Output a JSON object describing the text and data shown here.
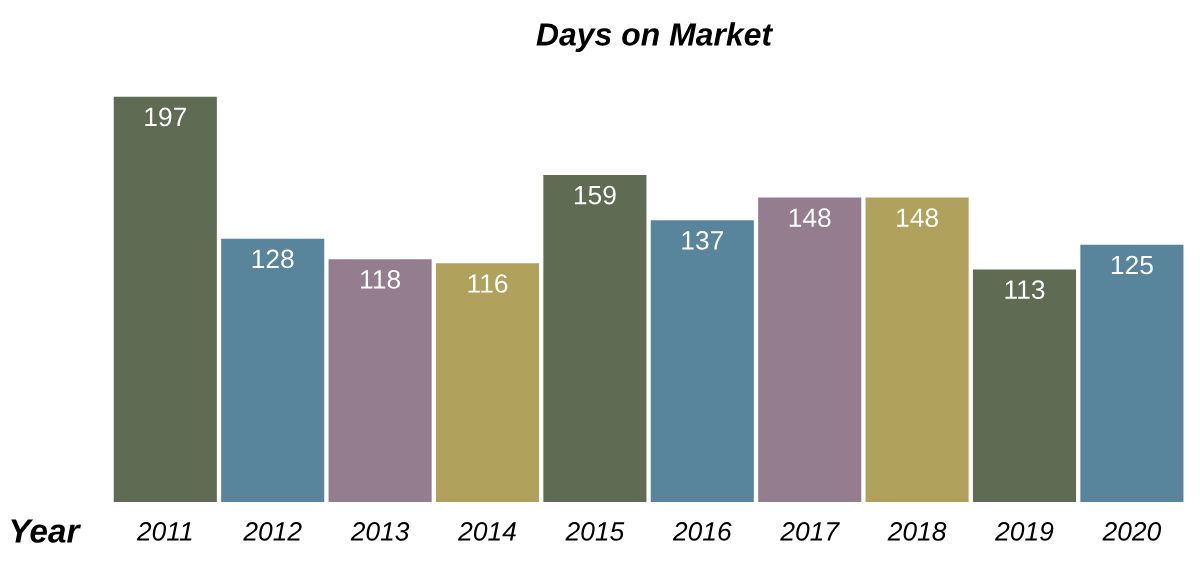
{
  "chart_data": {
    "type": "bar",
    "title": "Days on Market",
    "xlabel": "Year",
    "categories": [
      "2011",
      "2012",
      "2013",
      "2014",
      "2015",
      "2016",
      "2017",
      "2018",
      "2019",
      "2020"
    ],
    "values": [
      197,
      128,
      118,
      116,
      159,
      137,
      148,
      148,
      113,
      125
    ],
    "colors": [
      "#5f6b52",
      "#58849c",
      "#937d8f",
      "#b0a15c",
      "#5f6b52",
      "#58849c",
      "#937d8f",
      "#b0a15c",
      "#5f6b52",
      "#58849c"
    ],
    "data_labels": true,
    "grid": false,
    "legend": false
  }
}
